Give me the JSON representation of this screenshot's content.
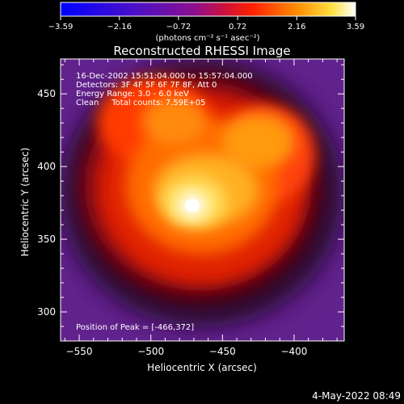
{
  "chart_data": {
    "type": "heatmap",
    "title": "Reconstructed RHESSI Image",
    "colorbar": {
      "min": -3.59,
      "max": 3.59,
      "ticks": [
        -3.59,
        -2.16,
        -0.72,
        0.72,
        2.16,
        3.59
      ],
      "tick_labels": [
        "−3.59",
        "−2.16",
        "−0.72",
        "0.72",
        "2.16",
        "3.59"
      ],
      "unit_label": "(photons cm⁻² s⁻¹ asec⁻²)"
    },
    "xlabel": "Heliocentric X (arcsec)",
    "ylabel": "Heliocentric Y (arcsec)",
    "xlim": [
      -563,
      -365
    ],
    "ylim": [
      280,
      474
    ],
    "xticks": [
      -550,
      -500,
      -450,
      -400
    ],
    "xtick_labels": [
      "−550",
      "−500",
      "−450",
      "−400"
    ],
    "yticks": [
      300,
      350,
      400,
      450
    ],
    "ytick_labels": [
      "300",
      "350",
      "400",
      "450"
    ],
    "peak": {
      "x": -466,
      "y": 372
    },
    "annotations": [
      "16-Dec-2002 15:51:04.000 to 15:57:04.000",
      "Detectors: 3F 4F 5F 6F 7F 8F, Att 0",
      "Energy Range: 3.0 - 6.0 keV",
      "Clean     Total counts: 7.59E+05"
    ],
    "peak_label": "Position of Peak = [-466,372]",
    "colors": {
      "background": "#000000",
      "low": "#1010ff",
      "mid": "#ff2000",
      "high": "#ffffff"
    }
  },
  "footer": {
    "timestamp": "4-May-2022 08:49"
  }
}
